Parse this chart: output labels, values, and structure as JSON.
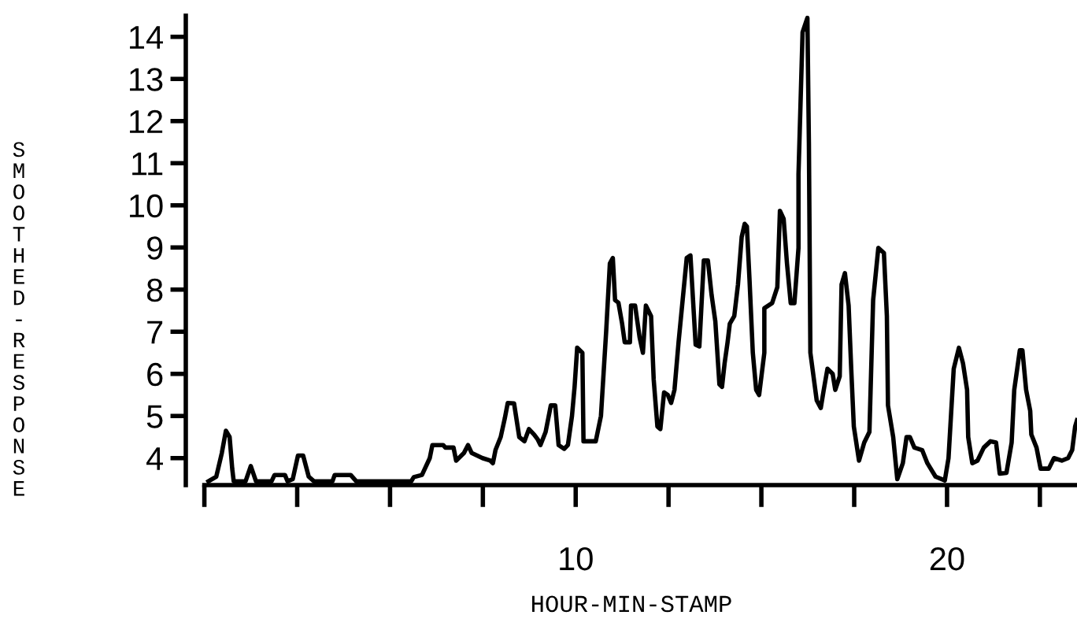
{
  "chart_data": {
    "type": "line",
    "xlabel": "HOUR-MIN-STAMP",
    "ylabel": "SMOOTHED-RESPONSE",
    "xlim": [
      -0.5,
      23.5
    ],
    "ylim": [
      3.36,
      14.5
    ],
    "xticks": [
      {
        "value": 0,
        "label": null
      },
      {
        "value": 2.5,
        "label": null
      },
      {
        "value": 5,
        "label": null
      },
      {
        "value": 7.5,
        "label": null
      },
      10,
      {
        "value": 12.5,
        "label": null
      },
      {
        "value": 15,
        "label": null
      },
      {
        "value": 17.5,
        "label": null
      },
      20,
      {
        "value": 22.5,
        "label": null
      }
    ],
    "yticks": [
      4,
      5,
      6,
      7,
      8,
      9,
      10,
      11,
      12,
      13,
      14
    ],
    "grid": false,
    "marker": "none",
    "line_style": "solid",
    "series": [
      {
        "color": "#000000",
        "x": [
          0.11,
          0.32,
          0.47,
          0.58,
          0.68,
          0.75,
          0.79,
          1.11,
          1.25,
          1.39,
          1.81,
          1.89,
          2.17,
          2.24,
          2.38,
          2.52,
          2.66,
          2.81,
          2.95,
          3.45,
          3.51,
          3.94,
          4.09,
          5.0,
          5.57,
          5.64,
          5.86,
          6.07,
          6.14,
          6.43,
          6.49,
          6.71,
          6.78,
          6.99,
          7.1,
          7.2,
          7.49,
          7.7,
          7.77,
          7.84,
          7.98,
          8.09,
          8.17,
          8.34,
          8.48,
          8.62,
          8.74,
          8.88,
          8.98,
          9.05,
          9.19,
          9.33,
          9.45,
          9.54,
          9.69,
          9.79,
          9.9,
          9.97,
          10.04,
          10.18,
          10.21,
          10.54,
          10.68,
          10.75,
          10.82,
          10.92,
          11.0,
          11.06,
          11.15,
          11.25,
          11.32,
          11.46,
          11.49,
          11.6,
          11.72,
          11.81,
          11.89,
          12.03,
          12.1,
          12.2,
          12.28,
          12.38,
          12.48,
          12.57,
          12.66,
          12.77,
          12.88,
          12.99,
          13.09,
          13.16,
          13.23,
          13.33,
          13.45,
          13.56,
          13.66,
          13.76,
          13.87,
          13.94,
          14.01,
          14.09,
          14.15,
          14.27,
          14.37,
          14.47,
          14.55,
          14.61,
          14.68,
          14.77,
          14.86,
          14.94,
          15.08,
          15.08,
          15.29,
          15.43,
          15.5,
          15.6,
          15.69,
          15.79,
          15.89,
          16.0,
          16.0,
          16.11,
          16.24,
          16.28,
          16.32,
          16.49,
          16.6,
          16.68,
          16.78,
          16.92,
          16.99,
          17.11,
          17.16,
          17.25,
          17.35,
          17.42,
          17.49,
          17.63,
          17.77,
          17.91,
          18.01,
          18.15,
          18.3,
          18.38,
          18.41,
          18.55,
          18.66,
          18.81,
          18.91,
          19.0,
          19.12,
          19.33,
          19.47,
          19.69,
          19.94,
          20.04,
          20.18,
          20.32,
          20.43,
          20.54,
          20.57,
          20.68,
          20.82,
          20.99,
          21.17,
          21.32,
          21.42,
          21.6,
          21.74,
          21.81,
          21.96,
          22.03,
          22.13,
          22.24,
          22.27,
          22.41,
          22.52,
          22.74,
          22.88,
          23.09,
          23.26,
          23.37,
          23.45,
          23.5
        ],
        "values": [
          3.45,
          3.56,
          4.12,
          4.65,
          4.5,
          3.75,
          3.45,
          3.45,
          3.81,
          3.45,
          3.45,
          3.6,
          3.6,
          3.45,
          3.5,
          4.06,
          4.06,
          3.56,
          3.45,
          3.45,
          3.6,
          3.6,
          3.45,
          3.45,
          3.45,
          3.55,
          3.6,
          4.0,
          4.31,
          4.31,
          4.25,
          4.25,
          3.94,
          4.12,
          4.31,
          4.12,
          4.0,
          3.94,
          3.88,
          4.19,
          4.5,
          4.94,
          5.31,
          5.3,
          4.5,
          4.4,
          4.69,
          4.56,
          4.44,
          4.31,
          4.62,
          5.25,
          5.25,
          4.31,
          4.22,
          4.31,
          5.0,
          5.69,
          6.62,
          6.5,
          4.4,
          4.4,
          5.0,
          6.0,
          7.0,
          8.62,
          8.75,
          7.75,
          7.69,
          7.19,
          6.75,
          6.75,
          7.62,
          7.62,
          6.87,
          6.5,
          7.62,
          7.37,
          5.87,
          4.75,
          4.69,
          5.56,
          5.5,
          5.31,
          5.62,
          6.75,
          7.75,
          8.75,
          8.81,
          7.75,
          6.69,
          6.65,
          8.69,
          8.69,
          7.87,
          7.25,
          5.75,
          5.69,
          6.25,
          6.75,
          7.19,
          7.37,
          8.12,
          9.25,
          9.56,
          9.5,
          8.25,
          6.5,
          5.62,
          5.5,
          6.5,
          7.56,
          7.68,
          8.06,
          9.87,
          9.68,
          8.62,
          7.68,
          7.68,
          8.99,
          10.74,
          14.11,
          14.45,
          11.49,
          6.5,
          5.37,
          5.19,
          5.62,
          6.12,
          6.0,
          5.62,
          5.94,
          8.12,
          8.39,
          7.62,
          6.12,
          4.75,
          3.94,
          4.37,
          4.62,
          7.75,
          8.99,
          8.87,
          7.37,
          5.25,
          4.5,
          3.5,
          3.88,
          4.5,
          4.5,
          4.25,
          4.19,
          3.88,
          3.56,
          3.47,
          4.0,
          6.12,
          6.62,
          6.25,
          5.62,
          4.5,
          3.88,
          3.94,
          4.25,
          4.4,
          4.37,
          3.63,
          3.65,
          4.37,
          5.62,
          6.56,
          6.56,
          5.62,
          5.12,
          4.56,
          4.25,
          3.75,
          3.75,
          4.0,
          3.94,
          4.0,
          4.19,
          4.75,
          4.9
        ]
      }
    ]
  }
}
